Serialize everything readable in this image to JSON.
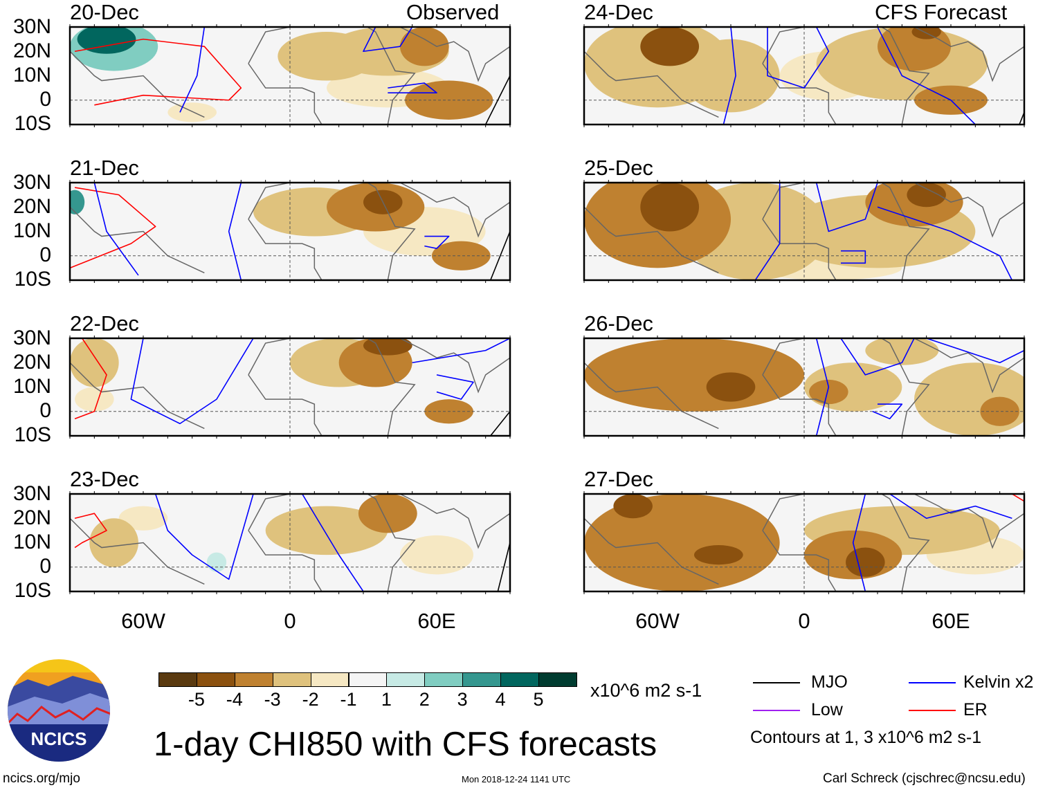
{
  "header": {
    "observed_label": "Observed",
    "forecast_label": "CFS Forecast"
  },
  "lat_labels": [
    "30N",
    "20N",
    "10N",
    "0",
    "10S"
  ],
  "lon_labels": [
    "60W",
    "0",
    "60E"
  ],
  "chart_data": {
    "type": "heatmap",
    "lon_range": [
      -90,
      90
    ],
    "lat_range": [
      -10,
      30
    ],
    "panels": [
      {
        "date": "20-Dec",
        "blobs": [
          [
            -75,
            25,
            12,
            6,
            5
          ],
          [
            -72,
            22,
            18,
            10,
            3
          ],
          [
            -65,
            10,
            10,
            10,
            1
          ],
          [
            15,
            18,
            20,
            10,
            -2
          ],
          [
            40,
            20,
            25,
            10,
            -2
          ],
          [
            55,
            22,
            10,
            8,
            -3
          ],
          [
            65,
            0,
            18,
            8,
            -3
          ],
          [
            40,
            5,
            25,
            8,
            -1
          ],
          [
            -40,
            -5,
            10,
            4,
            -1
          ]
        ],
        "contours": [
          {
            "c": "red",
            "p": [
              [
                -88,
                20
              ],
              [
                -60,
                25
              ],
              [
                -35,
                22
              ],
              [
                -20,
                5
              ],
              [
                -25,
                0
              ],
              [
                -60,
                2
              ],
              [
                -80,
                -2
              ]
            ]
          },
          {
            "c": "blue",
            "p": [
              [
                -35,
                30
              ],
              [
                -38,
                10
              ],
              [
                -45,
                -5
              ]
            ]
          },
          {
            "c": "blue",
            "p": [
              [
                35,
                30
              ],
              [
                30,
                20
              ],
              [
                45,
                22
              ],
              [
                50,
                30
              ]
            ]
          },
          {
            "c": "blue",
            "p": [
              [
                40,
                5
              ],
              [
                55,
                7
              ],
              [
                60,
                3
              ],
              [
                40,
                3
              ]
            ]
          },
          {
            "c": "black",
            "p": [
              [
                90,
                10
              ],
              [
                80,
                -10
              ]
            ]
          }
        ]
      },
      {
        "date": "21-Dec",
        "blobs": [
          [
            -88,
            22,
            4,
            5,
            4
          ],
          [
            10,
            18,
            25,
            10,
            -2
          ],
          [
            35,
            20,
            20,
            10,
            -3
          ],
          [
            38,
            22,
            8,
            5,
            -4
          ],
          [
            70,
            0,
            12,
            6,
            -3
          ],
          [
            55,
            10,
            25,
            10,
            -1
          ],
          [
            -70,
            -5,
            10,
            5,
            1
          ]
        ],
        "contours": [
          {
            "c": "red",
            "p": [
              [
                -88,
                28
              ],
              [
                -70,
                25
              ],
              [
                -55,
                12
              ],
              [
                -65,
                5
              ],
              [
                -90,
                -5
              ]
            ]
          },
          {
            "c": "blue",
            "p": [
              [
                -80,
                30
              ],
              [
                -75,
                10
              ],
              [
                -62,
                -8
              ]
            ]
          },
          {
            "c": "blue",
            "p": [
              [
                -20,
                30
              ],
              [
                -25,
                10
              ],
              [
                -20,
                -10
              ]
            ]
          },
          {
            "c": "blue",
            "p": [
              [
                55,
                8
              ],
              [
                65,
                8
              ],
              [
                60,
                3
              ],
              [
                55,
                4
              ]
            ]
          },
          {
            "c": "black",
            "p": [
              [
                90,
                10
              ],
              [
                82,
                -10
              ]
            ]
          }
        ]
      },
      {
        "date": "22-Dec",
        "blobs": [
          [
            -80,
            20,
            10,
            10,
            -2
          ],
          [
            -30,
            15,
            6,
            16,
            1
          ],
          [
            20,
            20,
            20,
            10,
            -2
          ],
          [
            35,
            20,
            15,
            10,
            -3
          ],
          [
            40,
            27,
            10,
            4,
            -4
          ],
          [
            65,
            0,
            10,
            5,
            -3
          ],
          [
            -80,
            5,
            8,
            5,
            -1
          ]
        ],
        "contours": [
          {
            "c": "red",
            "p": [
              [
                -85,
                30
              ],
              [
                -75,
                15
              ],
              [
                -80,
                0
              ],
              [
                -88,
                -3
              ]
            ]
          },
          {
            "c": "blue",
            "p": [
              [
                -60,
                30
              ],
              [
                -65,
                5
              ],
              [
                -45,
                -5
              ],
              [
                -30,
                5
              ],
              [
                -15,
                30
              ]
            ]
          },
          {
            "c": "blue",
            "p": [
              [
                60,
                15
              ],
              [
                75,
                12
              ],
              [
                70,
                5
              ],
              [
                60,
                8
              ]
            ]
          },
          {
            "c": "blue",
            "p": [
              [
                50,
                20
              ],
              [
                80,
                25
              ],
              [
                90,
                30
              ]
            ]
          },
          {
            "c": "black",
            "p": [
              [
                90,
                0
              ],
              [
                82,
                -10
              ]
            ]
          }
        ]
      },
      {
        "date": "23-Dec",
        "blobs": [
          [
            -72,
            10,
            10,
            10,
            -2
          ],
          [
            -30,
            5,
            8,
            15,
            1
          ],
          [
            -30,
            2,
            4,
            4,
            2
          ],
          [
            15,
            15,
            25,
            10,
            -2
          ],
          [
            40,
            22,
            12,
            8,
            -3
          ],
          [
            60,
            5,
            15,
            8,
            -1
          ],
          [
            -60,
            20,
            10,
            5,
            -1
          ]
        ],
        "contours": [
          {
            "c": "red",
            "p": [
              [
                -88,
                20
              ],
              [
                -80,
                22
              ],
              [
                -75,
                15
              ],
              [
                -85,
                10
              ],
              [
                -88,
                8
              ]
            ]
          },
          {
            "c": "blue",
            "p": [
              [
                -55,
                30
              ],
              [
                -50,
                15
              ],
              [
                -40,
                5
              ],
              [
                -25,
                -5
              ],
              [
                -15,
                30
              ]
            ]
          },
          {
            "c": "blue",
            "p": [
              [
                5,
                30
              ],
              [
                20,
                5
              ],
              [
                30,
                -10
              ]
            ]
          },
          {
            "c": "black",
            "p": [
              [
                90,
                10
              ],
              [
                85,
                -10
              ]
            ]
          }
        ]
      },
      {
        "date": "24-Dec",
        "blobs": [
          [
            -60,
            15,
            30,
            18,
            -2
          ],
          [
            -55,
            22,
            12,
            8,
            -4
          ],
          [
            -30,
            10,
            20,
            15,
            -2
          ],
          [
            40,
            15,
            35,
            15,
            -2
          ],
          [
            45,
            22,
            15,
            10,
            -3
          ],
          [
            50,
            28,
            6,
            3,
            -4
          ],
          [
            60,
            0,
            15,
            6,
            -3
          ],
          [
            10,
            10,
            20,
            10,
            -1
          ]
        ],
        "contours": [
          {
            "c": "blue",
            "p": [
              [
                -30,
                30
              ],
              [
                -28,
                10
              ],
              [
                -33,
                -10
              ]
            ]
          },
          {
            "c": "blue",
            "p": [
              [
                -15,
                30
              ],
              [
                -15,
                10
              ],
              [
                0,
                5
              ],
              [
                10,
                20
              ],
              [
                5,
                30
              ]
            ]
          },
          {
            "c": "blue",
            "p": [
              [
                30,
                30
              ],
              [
                40,
                10
              ],
              [
                60,
                0
              ],
              [
                70,
                -10
              ]
            ]
          },
          {
            "c": "black",
            "p": [
              [
                90,
                -5
              ],
              [
                88,
                -10
              ]
            ]
          }
        ]
      },
      {
        "date": "25-Dec",
        "blobs": [
          [
            -60,
            15,
            30,
            20,
            -3
          ],
          [
            -55,
            20,
            12,
            10,
            -4
          ],
          [
            -20,
            10,
            30,
            20,
            -2
          ],
          [
            45,
            22,
            20,
            10,
            -3
          ],
          [
            50,
            25,
            8,
            5,
            -4
          ],
          [
            30,
            10,
            40,
            15,
            -2
          ],
          [
            10,
            -5,
            30,
            5,
            -1
          ]
        ],
        "contours": [
          {
            "c": "blue",
            "p": [
              [
                -10,
                30
              ],
              [
                -10,
                5
              ],
              [
                -20,
                -10
              ]
            ]
          },
          {
            "c": "blue",
            "p": [
              [
                5,
                30
              ],
              [
                10,
                10
              ],
              [
                25,
                15
              ],
              [
                30,
                30
              ]
            ]
          },
          {
            "c": "blue",
            "p": [
              [
                30,
                20
              ],
              [
                60,
                10
              ],
              [
                80,
                0
              ],
              [
                85,
                -10
              ]
            ]
          },
          {
            "c": "blue",
            "p": [
              [
                15,
                2
              ],
              [
                25,
                2
              ],
              [
                25,
                -3
              ],
              [
                15,
                -3
              ]
            ]
          }
        ]
      },
      {
        "date": "26-Dec",
        "blobs": [
          [
            -45,
            15,
            45,
            15,
            -3
          ],
          [
            -30,
            10,
            10,
            6,
            -4
          ],
          [
            20,
            10,
            20,
            10,
            -2
          ],
          [
            10,
            8,
            8,
            5,
            -3
          ],
          [
            70,
            5,
            25,
            15,
            -2
          ],
          [
            80,
            0,
            8,
            6,
            -3
          ],
          [
            40,
            25,
            15,
            6,
            -2
          ]
        ],
        "contours": [
          {
            "c": "blue",
            "p": [
              [
                5,
                30
              ],
              [
                10,
                10
              ],
              [
                5,
                -10
              ]
            ]
          },
          {
            "c": "blue",
            "p": [
              [
                15,
                30
              ],
              [
                25,
                15
              ],
              [
                40,
                20
              ],
              [
                45,
                30
              ]
            ]
          },
          {
            "c": "blue",
            "p": [
              [
                50,
                30
              ],
              [
                80,
                20
              ],
              [
                90,
                25
              ]
            ]
          },
          {
            "c": "blue",
            "p": [
              [
                30,
                3
              ],
              [
                40,
                3
              ],
              [
                35,
                -3
              ],
              [
                28,
                0
              ]
            ]
          }
        ]
      },
      {
        "date": "27-Dec",
        "blobs": [
          [
            -50,
            10,
            40,
            20,
            -3
          ],
          [
            -70,
            25,
            8,
            5,
            -4
          ],
          [
            -35,
            5,
            10,
            4,
            -4
          ],
          [
            20,
            5,
            20,
            10,
            -3
          ],
          [
            25,
            2,
            8,
            6,
            -4
          ],
          [
            40,
            15,
            40,
            10,
            -2
          ],
          [
            70,
            5,
            20,
            8,
            -1
          ]
        ],
        "contours": [
          {
            "c": "blue",
            "p": [
              [
                25,
                30
              ],
              [
                20,
                10
              ],
              [
                25,
                -10
              ]
            ]
          },
          {
            "c": "blue",
            "p": [
              [
                35,
                30
              ],
              [
                50,
                20
              ],
              [
                70,
                25
              ],
              [
                85,
                20
              ]
            ]
          },
          {
            "c": "red",
            "p": [
              [
                85,
                30
              ],
              [
                90,
                27
              ]
            ]
          }
        ]
      }
    ],
    "levels": [
      -5,
      -4,
      -3,
      -2,
      -1,
      1,
      2,
      3,
      4,
      5
    ]
  },
  "colorbar": {
    "labels": [
      "-5",
      "-4",
      "-3",
      "-2",
      "-1",
      "1",
      "2",
      "3",
      "4",
      "5"
    ],
    "colors": [
      "#5a3a10",
      "#8b510f",
      "#bf8130",
      "#dfc27d",
      "#f6e8c3",
      "#f5f5f5",
      "#c7eae5",
      "#80cdc1",
      "#35978f",
      "#01665e",
      "#003c30"
    ],
    "units": "x10^6 m2 s-1"
  },
  "legend": {
    "mjo": "MJO",
    "low": "Low",
    "kelvin": "Kelvin x2",
    "er": "ER",
    "note": "Contours at 1, 3 x10^6 m2 s-1",
    "colors": {
      "mjo": "#000000",
      "low": "#a020f0",
      "kelvin": "#0000ff",
      "er": "#ff0000"
    }
  },
  "footer": {
    "title": "1-day CHI850 with CFS forecasts",
    "logo": "NCICS",
    "site": "ncics.org/mjo",
    "timestamp": "Mon 2018-12-24 1141 UTC",
    "author": "Carl Schreck (cjschrec@ncsu.edu)"
  }
}
